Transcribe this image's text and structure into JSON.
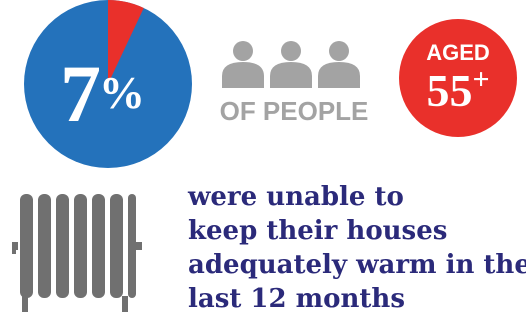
{
  "stat": {
    "value": "7",
    "unit": "%",
    "fraction": 0.07
  },
  "people": {
    "label": "OF PEOPLE",
    "icon": "people-icon"
  },
  "age": {
    "label": "AGED",
    "value": "55",
    "plus": "+"
  },
  "statement": {
    "lines": [
      "were unable to",
      "keep their houses",
      "adequately warm in the",
      "last 12 months"
    ]
  },
  "icons": {
    "radiator": "radiator-icon"
  },
  "colors": {
    "blue": "#2472bb",
    "red": "#e9302b",
    "gray": "#a3a3a3",
    "navy": "#2b2a7a"
  }
}
